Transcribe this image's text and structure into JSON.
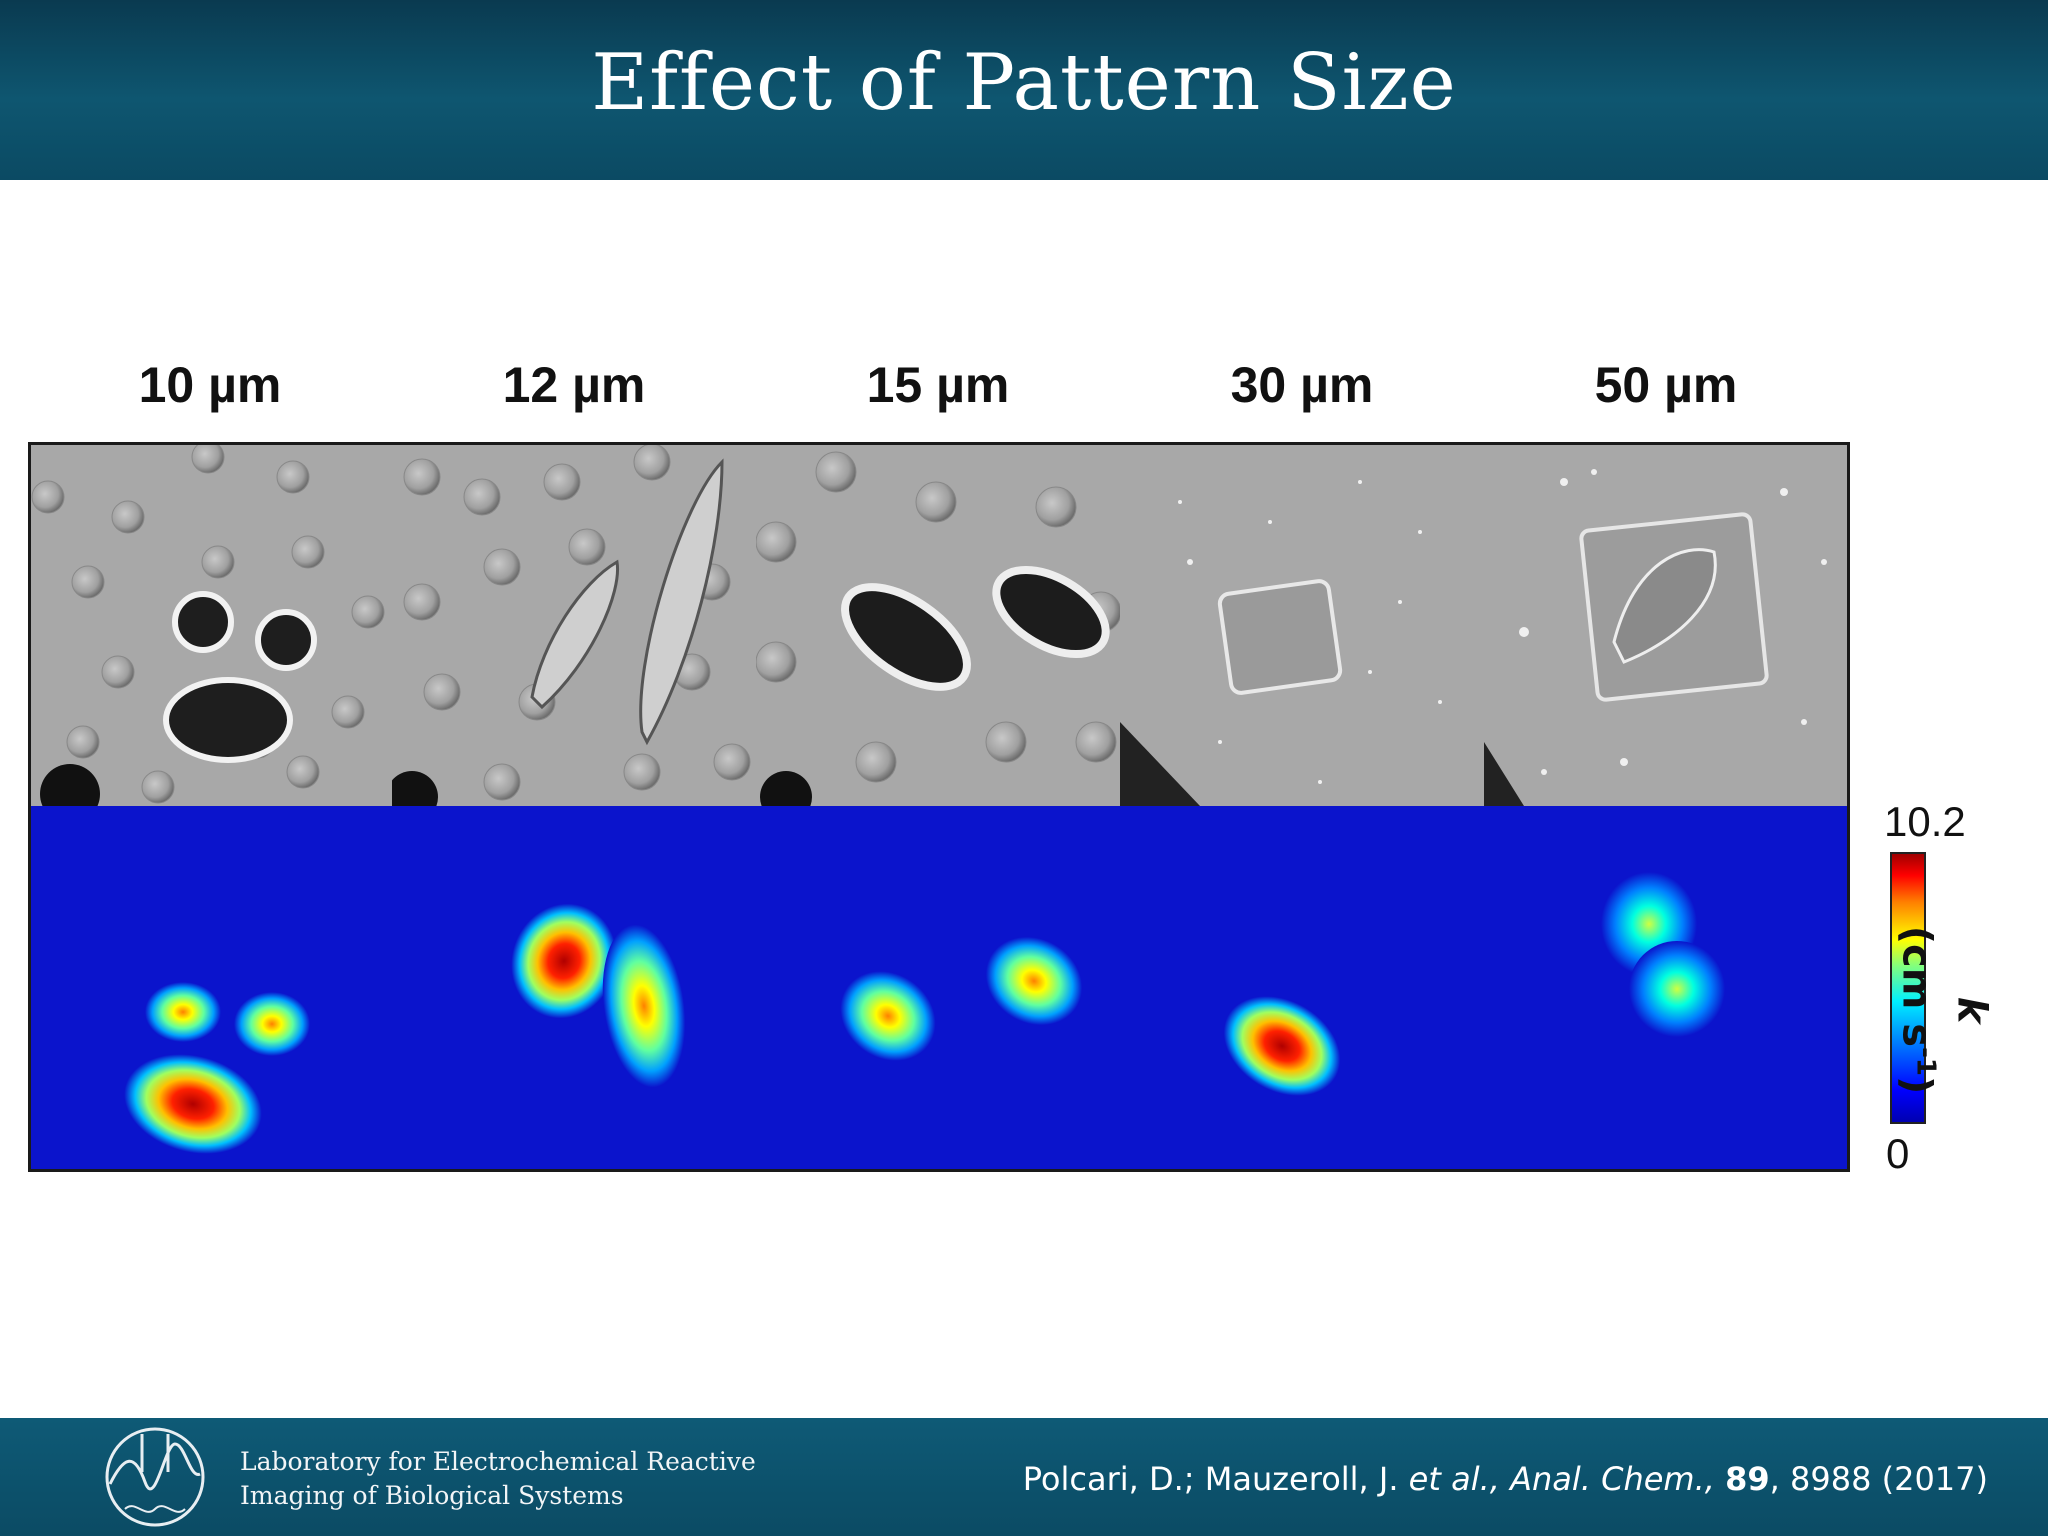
{
  "slide": {
    "title": "Effect of Pattern Size"
  },
  "figure": {
    "columns": [
      {
        "label": "10 µm"
      },
      {
        "label": "12 µm"
      },
      {
        "label": "15 µm"
      },
      {
        "label": "30 µm"
      },
      {
        "label": "50 µm"
      }
    ],
    "colorbar": {
      "max": "10.2",
      "min": "0",
      "label_symbol": "k",
      "label_units_prefix": "(cm s",
      "label_units_exp": "-1",
      "label_units_suffix": ")",
      "colors": [
        "#0000b0",
        "#0000ff",
        "#00ffff",
        "#ffff00",
        "#ff0000",
        "#a00000"
      ]
    }
  },
  "footer": {
    "lab_line1": "Laboratory for Electrochemical Reactive",
    "lab_line2": "Imaging of Biological Systems",
    "cite_authors": "Polcari, D.; Mauzeroll, J. ",
    "cite_etal": "et al., Anal. Chem.,",
    "cite_volume": "89",
    "cite_pages": ", 8988 (2017)"
  }
}
